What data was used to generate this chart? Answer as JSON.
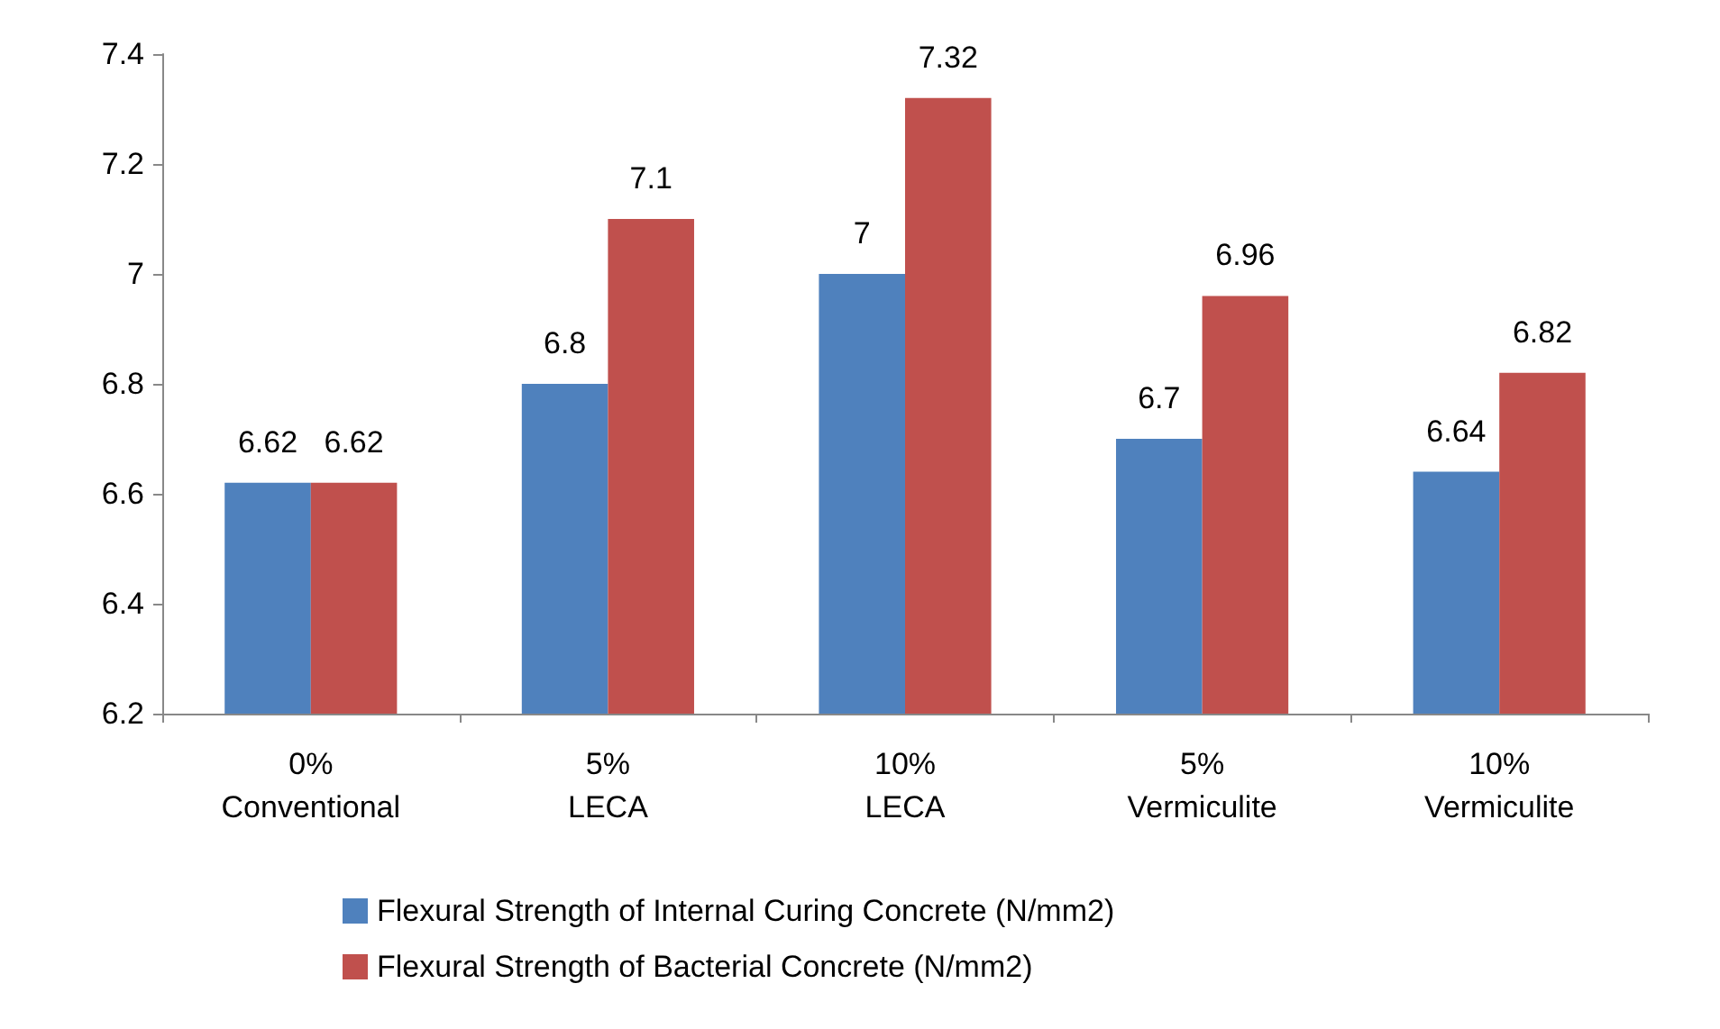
{
  "chart_data": {
    "type": "bar",
    "categories": [
      "0%\nConventional",
      "5%\nLECA",
      "10%\nLECA",
      "5%\nVermiculite",
      "10%\nVermiculite"
    ],
    "series": [
      {
        "name": "Flexural Strength of Internal Curing Concrete (N/mm2)",
        "color": "#4f81bd",
        "values": [
          6.62,
          6.8,
          7,
          6.7,
          6.64
        ]
      },
      {
        "name": "Flexural Strength of Bacterial Concrete (N/mm2)",
        "color": "#c0504d",
        "values": [
          6.62,
          7.1,
          7.32,
          6.96,
          6.82
        ]
      }
    ],
    "ylim": [
      6.2,
      7.4
    ],
    "yticks": [
      6.2,
      6.4,
      6.6,
      6.8,
      7,
      7.2,
      7.4
    ],
    "grid": false,
    "legend": "bottom",
    "data_labels": true
  }
}
